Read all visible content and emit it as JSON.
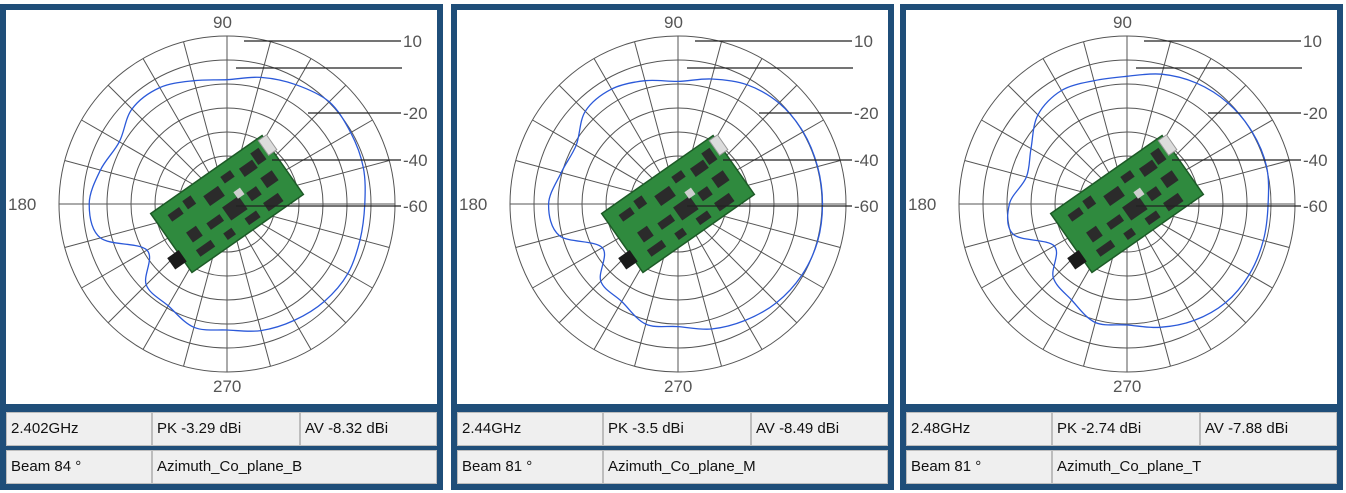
{
  "chart_data": [
    {
      "type": "polar-line",
      "angle_labels": [
        "90",
        "180",
        "270"
      ],
      "radial_labels": [
        "10",
        "-20",
        "-40",
        "-60"
      ],
      "frequency": "2.402GHz",
      "peak": "PK -3.29 dBi",
      "average": "AV -8.32 dBi",
      "beam": "Beam 84 °",
      "plane": "Azimuth_Co_plane_B",
      "series": [
        {
          "color": "#2b59d9",
          "theta_deg": [
            0,
            15,
            30,
            45,
            60,
            75,
            90,
            105,
            120,
            135,
            150,
            165,
            180,
            195,
            210,
            225,
            240,
            255,
            270,
            285,
            300,
            315,
            330,
            345
          ],
          "radius_frac": [
            0.82,
            0.84,
            0.85,
            0.86,
            0.82,
            0.78,
            0.74,
            0.76,
            0.8,
            0.8,
            0.74,
            0.78,
            0.82,
            0.78,
            0.55,
            0.68,
            0.7,
            0.76,
            0.75,
            0.78,
            0.8,
            0.82,
            0.83,
            0.82
          ]
        }
      ]
    },
    {
      "type": "polar-line",
      "angle_labels": [
        "90",
        "180",
        "270"
      ],
      "radial_labels": [
        "10",
        "-20",
        "-40",
        "-60"
      ],
      "frequency": "2.44GHz",
      "peak": "PK -3.5 dBi",
      "average": "AV -8.49 dBi",
      "beam": "Beam 81 °",
      "plane": "Azimuth_Co_plane_M",
      "series": [
        {
          "color": "#2b59d9",
          "theta_deg": [
            0,
            15,
            30,
            45,
            60,
            75,
            90,
            105,
            120,
            135,
            150,
            165,
            180,
            195,
            210,
            225,
            240,
            255,
            270,
            285,
            300,
            315,
            330,
            345
          ],
          "radius_frac": [
            0.86,
            0.86,
            0.86,
            0.85,
            0.82,
            0.77,
            0.73,
            0.76,
            0.79,
            0.78,
            0.7,
            0.72,
            0.77,
            0.73,
            0.52,
            0.65,
            0.67,
            0.74,
            0.73,
            0.77,
            0.8,
            0.83,
            0.85,
            0.86
          ]
        }
      ]
    },
    {
      "type": "polar-line",
      "angle_labels": [
        "90",
        "180",
        "270"
      ],
      "radial_labels": [
        "10",
        "-20",
        "-40",
        "-60"
      ],
      "frequency": "2.48GHz",
      "peak": "PK -2.74 dBi",
      "average": "AV -7.88 dBi",
      "beam": "Beam 81 °",
      "plane": "Azimuth_Co_plane_T",
      "series": [
        {
          "color": "#2b59d9",
          "theta_deg": [
            0,
            15,
            30,
            45,
            60,
            75,
            90,
            105,
            120,
            135,
            150,
            165,
            180,
            195,
            210,
            225,
            240,
            255,
            270,
            285,
            300,
            315,
            330,
            345
          ],
          "radius_frac": [
            0.84,
            0.86,
            0.86,
            0.85,
            0.83,
            0.8,
            0.76,
            0.76,
            0.78,
            0.75,
            0.66,
            0.62,
            0.7,
            0.7,
            0.5,
            0.62,
            0.66,
            0.73,
            0.72,
            0.76,
            0.8,
            0.83,
            0.84,
            0.84
          ]
        }
      ]
    }
  ]
}
